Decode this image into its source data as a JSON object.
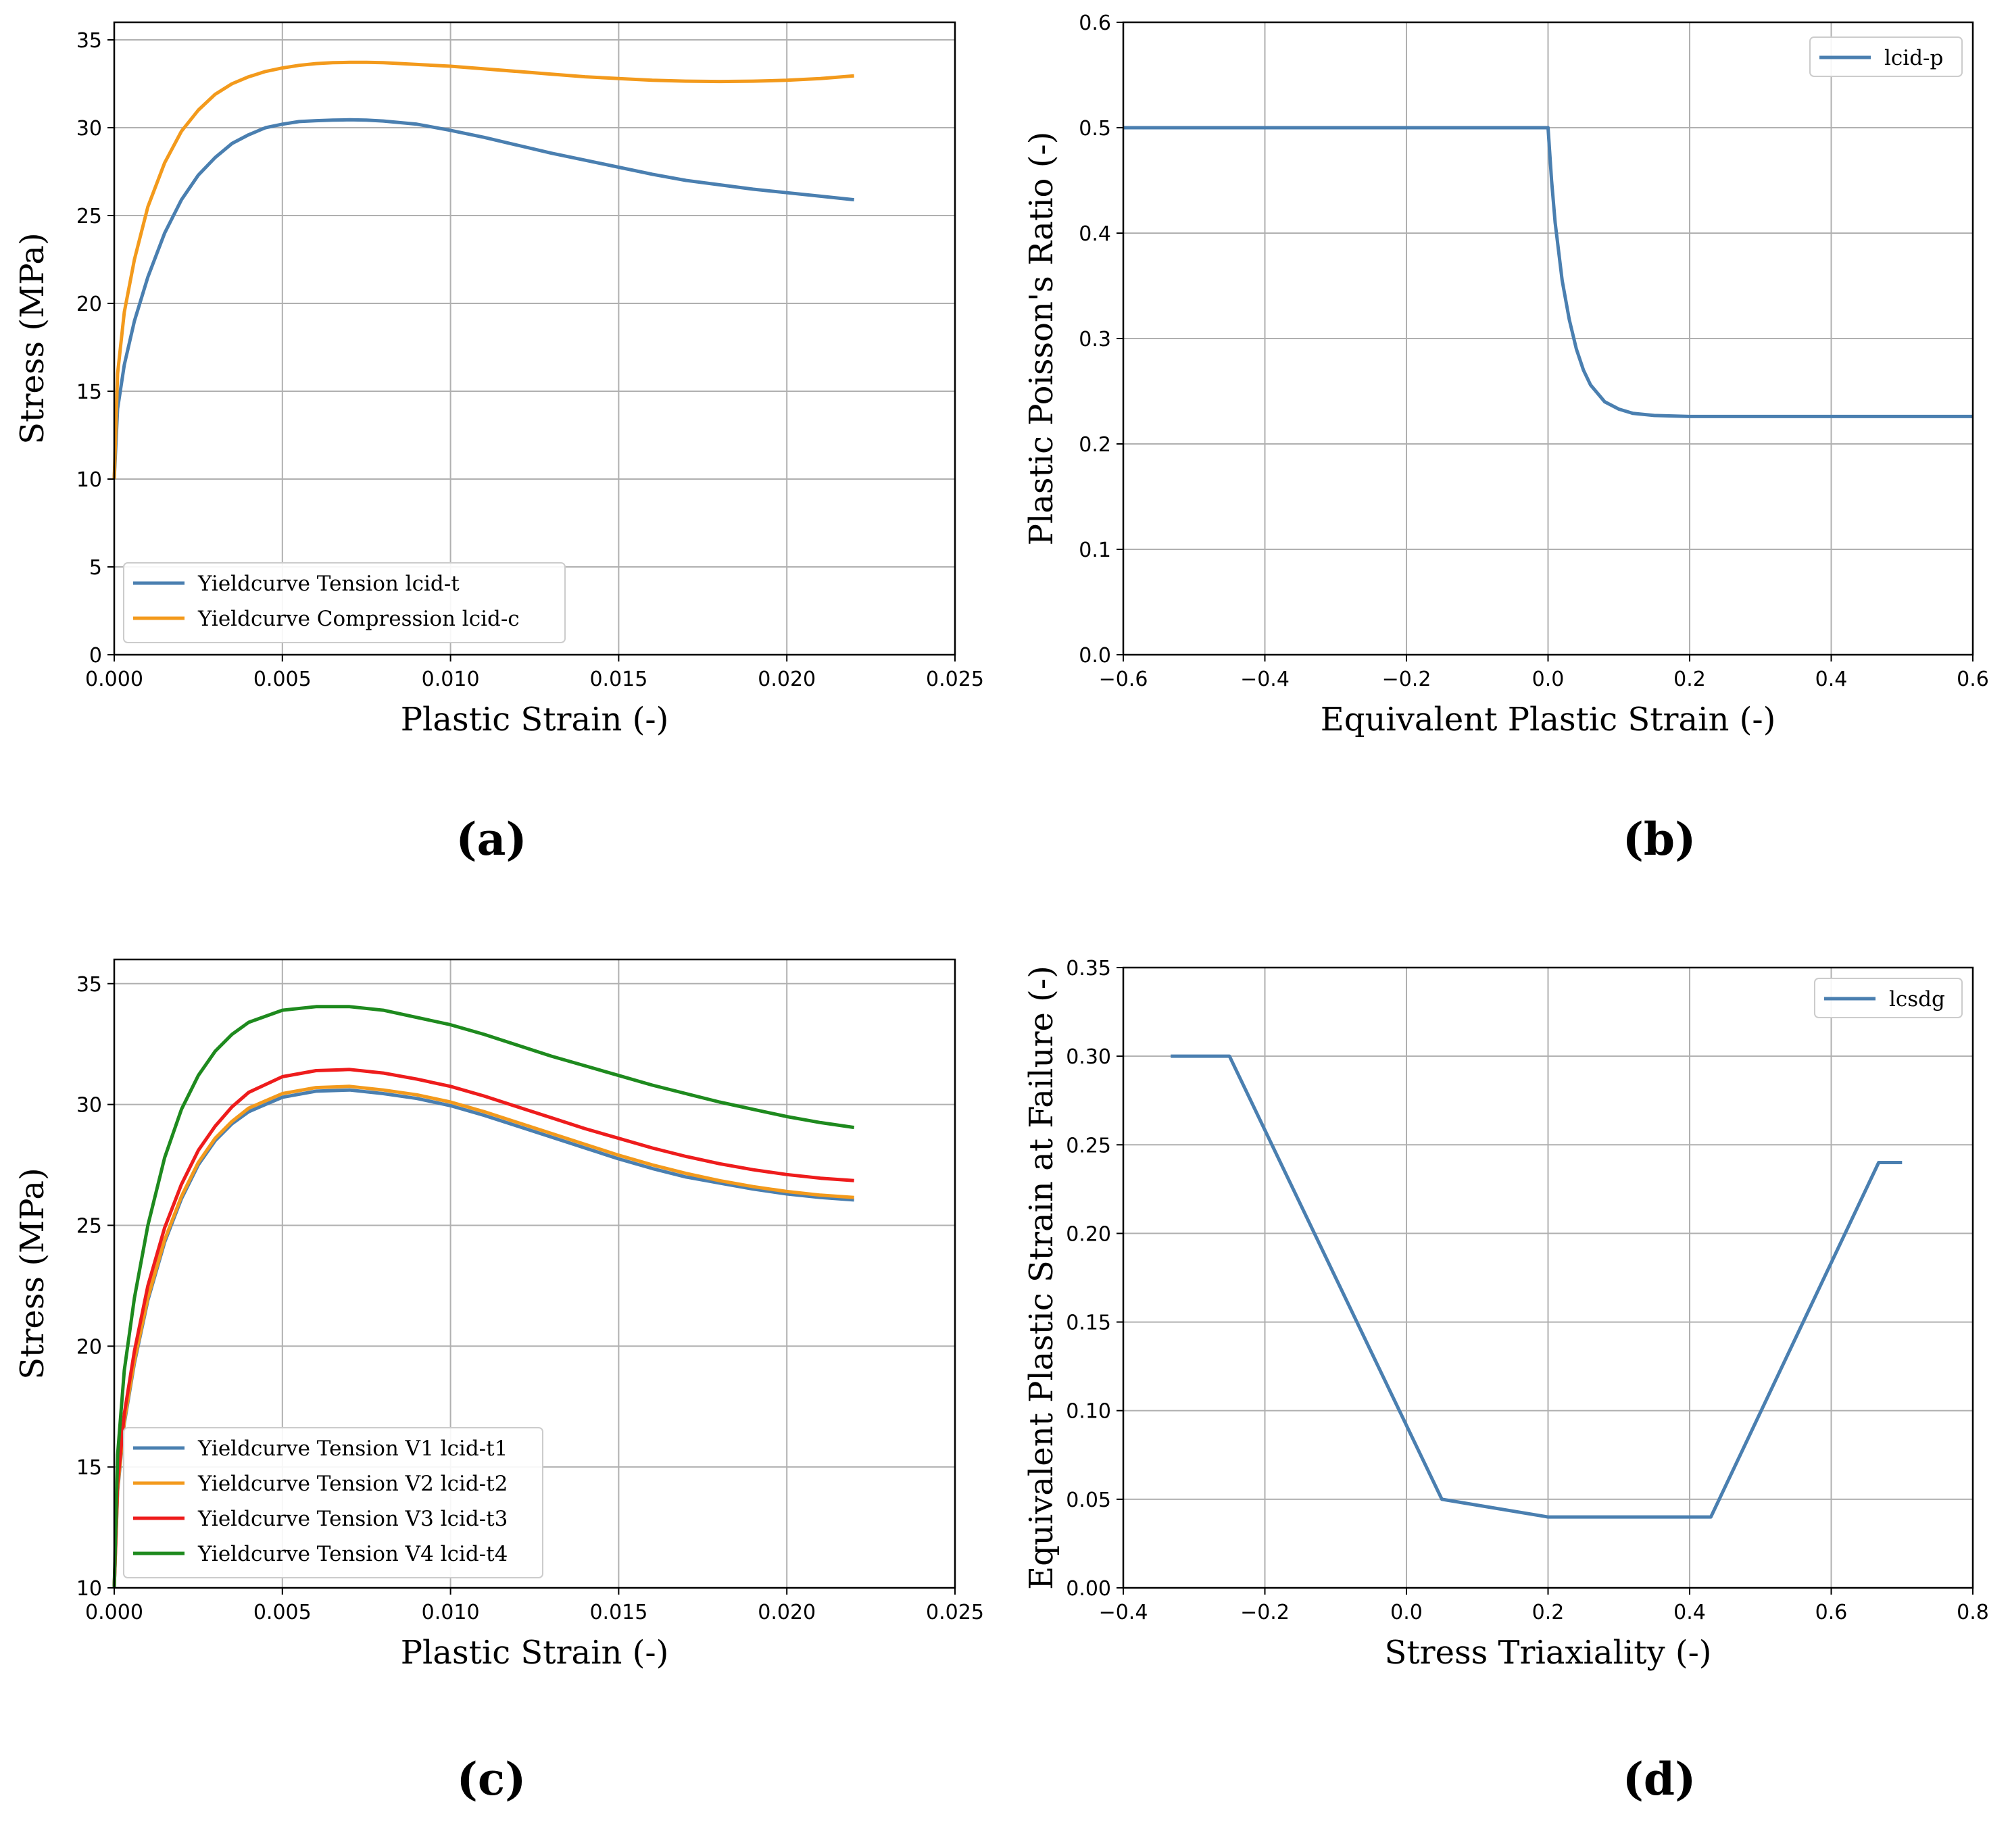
{
  "colors": {
    "blue": "#4a7fb0",
    "orange": "#f39a1c",
    "red": "#ee1c1c",
    "green": "#1e8a1e",
    "grid": "#b0b0b0",
    "axis": "#000000"
  },
  "chart_data": [
    {
      "id": "a",
      "type": "line",
      "caption": "(a)",
      "xlabel": "Plastic Strain (-)",
      "ylabel": "Stress (MPa)",
      "xlim": [
        0,
        0.025
      ],
      "ylim": [
        0,
        36
      ],
      "xticks": [
        0,
        0.005,
        0.01,
        0.015,
        0.02,
        0.025
      ],
      "xtick_labels": [
        "0.000",
        "0.005",
        "0.010",
        "0.015",
        "0.020",
        "0.025"
      ],
      "yticks": [
        0,
        5,
        10,
        15,
        20,
        25,
        30,
        35
      ],
      "ytick_labels": [
        "0",
        "5",
        "10",
        "15",
        "20",
        "25",
        "30",
        "35"
      ],
      "grid": true,
      "legend_position": "bottom-left",
      "series": [
        {
          "name": "Yieldcurve Tension lcid-t",
          "color": "blue",
          "x": [
            0,
            0.0001,
            0.0003,
            0.0006,
            0.001,
            0.0015,
            0.002,
            0.0025,
            0.003,
            0.0035,
            0.004,
            0.0045,
            0.005,
            0.0055,
            0.006,
            0.0065,
            0.007,
            0.0075,
            0.008,
            0.009,
            0.01,
            0.011,
            0.012,
            0.013,
            0.014,
            0.015,
            0.016,
            0.017,
            0.018,
            0.019,
            0.02,
            0.021,
            0.022
          ],
          "y": [
            10,
            14,
            16.5,
            19,
            21.5,
            24,
            25.9,
            27.3,
            28.3,
            29.1,
            29.6,
            30.0,
            30.2,
            30.35,
            30.4,
            30.43,
            30.45,
            30.43,
            30.38,
            30.2,
            29.85,
            29.45,
            29.0,
            28.55,
            28.15,
            27.75,
            27.35,
            27.0,
            26.75,
            26.5,
            26.3,
            26.1,
            25.9
          ]
        },
        {
          "name": "Yieldcurve Compression lcid-c",
          "color": "orange",
          "x": [
            0,
            0.0001,
            0.0003,
            0.0006,
            0.001,
            0.0015,
            0.002,
            0.0025,
            0.003,
            0.0035,
            0.004,
            0.0045,
            0.005,
            0.0055,
            0.006,
            0.0065,
            0.007,
            0.0075,
            0.008,
            0.009,
            0.01,
            0.011,
            0.012,
            0.013,
            0.014,
            0.015,
            0.016,
            0.017,
            0.018,
            0.019,
            0.02,
            0.021,
            0.022
          ],
          "y": [
            10,
            16,
            19.5,
            22.5,
            25.5,
            28.0,
            29.8,
            31.0,
            31.9,
            32.5,
            32.9,
            33.2,
            33.4,
            33.55,
            33.65,
            33.7,
            33.72,
            33.72,
            33.7,
            33.6,
            33.5,
            33.35,
            33.2,
            33.05,
            32.9,
            32.8,
            32.7,
            32.65,
            32.63,
            32.65,
            32.7,
            32.8,
            32.95
          ]
        }
      ]
    },
    {
      "id": "b",
      "type": "line",
      "caption": "(b)",
      "xlabel": "Equivalent Plastic Strain (-)",
      "ylabel": "Plastic Poisson's Ratio (-)",
      "xlim": [
        -0.6,
        0.6
      ],
      "ylim": [
        0,
        0.6
      ],
      "xticks": [
        -0.6,
        -0.4,
        -0.2,
        0,
        0.2,
        0.4,
        0.6
      ],
      "xtick_labels": [
        "−0.6",
        "−0.4",
        "−0.2",
        "0.0",
        "0.2",
        "0.4",
        "0.6"
      ],
      "yticks": [
        0,
        0.1,
        0.2,
        0.3,
        0.4,
        0.5,
        0.6
      ],
      "ytick_labels": [
        "0.0",
        "0.1",
        "0.2",
        "0.3",
        "0.4",
        "0.5",
        "0.6"
      ],
      "grid": true,
      "legend_position": "top-right",
      "series": [
        {
          "name": "lcid-p",
          "color": "blue",
          "x": [
            -0.6,
            0,
            0.005,
            0.01,
            0.02,
            0.03,
            0.04,
            0.05,
            0.06,
            0.08,
            0.1,
            0.12,
            0.15,
            0.2,
            0.3,
            0.6
          ],
          "y": [
            0.5,
            0.5,
            0.45,
            0.41,
            0.355,
            0.318,
            0.29,
            0.27,
            0.256,
            0.24,
            0.233,
            0.229,
            0.227,
            0.226,
            0.226,
            0.226
          ]
        }
      ]
    },
    {
      "id": "c",
      "type": "line",
      "caption": "(c)",
      "xlabel": "Plastic Strain (-)",
      "ylabel": "Stress (MPa)",
      "xlim": [
        0,
        0.025
      ],
      "ylim": [
        10,
        36
      ],
      "xticks": [
        0,
        0.005,
        0.01,
        0.015,
        0.02,
        0.025
      ],
      "xtick_labels": [
        "0.000",
        "0.005",
        "0.010",
        "0.015",
        "0.020",
        "0.025"
      ],
      "yticks": [
        10,
        15,
        20,
        25,
        30,
        35
      ],
      "ytick_labels": [
        "10",
        "15",
        "20",
        "25",
        "30",
        "35"
      ],
      "grid": true,
      "legend_position": "bottom-left",
      "series": [
        {
          "name": "Yieldcurve Tension V1 lcid-t1",
          "color": "blue",
          "x": [
            0,
            0.0001,
            0.0003,
            0.0006,
            0.001,
            0.0015,
            0.002,
            0.0025,
            0.003,
            0.0035,
            0.004,
            0.005,
            0.006,
            0.007,
            0.008,
            0.009,
            0.01,
            0.011,
            0.012,
            0.013,
            0.014,
            0.015,
            0.016,
            0.017,
            0.018,
            0.019,
            0.02,
            0.021,
            0.022
          ],
          "y": [
            10,
            14,
            16.8,
            19.3,
            21.9,
            24.3,
            26.1,
            27.5,
            28.5,
            29.2,
            29.7,
            30.3,
            30.55,
            30.6,
            30.45,
            30.25,
            29.95,
            29.55,
            29.1,
            28.65,
            28.2,
            27.75,
            27.35,
            27.0,
            26.75,
            26.5,
            26.3,
            26.15,
            26.05
          ]
        },
        {
          "name": "Yieldcurve Tension V2 lcid-t2",
          "color": "orange",
          "x": [
            0,
            0.0001,
            0.0003,
            0.0006,
            0.001,
            0.0015,
            0.002,
            0.0025,
            0.003,
            0.0035,
            0.004,
            0.005,
            0.006,
            0.007,
            0.008,
            0.009,
            0.01,
            0.011,
            0.012,
            0.013,
            0.014,
            0.015,
            0.016,
            0.017,
            0.018,
            0.019,
            0.02,
            0.021,
            0.022
          ],
          "y": [
            10,
            14.1,
            16.9,
            19.4,
            22.0,
            24.4,
            26.2,
            27.6,
            28.6,
            29.3,
            29.85,
            30.45,
            30.7,
            30.75,
            30.6,
            30.4,
            30.1,
            29.7,
            29.25,
            28.8,
            28.35,
            27.9,
            27.5,
            27.15,
            26.85,
            26.6,
            26.4,
            26.25,
            26.15
          ]
        },
        {
          "name": "Yieldcurve Tension V3 lcid-t3",
          "color": "red",
          "x": [
            0,
            0.0001,
            0.0003,
            0.0006,
            0.001,
            0.0015,
            0.002,
            0.0025,
            0.003,
            0.0035,
            0.004,
            0.005,
            0.006,
            0.007,
            0.008,
            0.009,
            0.01,
            0.011,
            0.012,
            0.013,
            0.014,
            0.015,
            0.016,
            0.017,
            0.018,
            0.019,
            0.02,
            0.021,
            0.022
          ],
          "y": [
            10,
            14.3,
            17.2,
            19.8,
            22.5,
            24.9,
            26.7,
            28.1,
            29.1,
            29.9,
            30.5,
            31.15,
            31.4,
            31.45,
            31.3,
            31.05,
            30.75,
            30.35,
            29.9,
            29.45,
            29.0,
            28.6,
            28.2,
            27.85,
            27.55,
            27.3,
            27.1,
            26.95,
            26.85
          ]
        },
        {
          "name": "Yieldcurve Tension V4 lcid-t4",
          "color": "green",
          "x": [
            0,
            0.0001,
            0.0003,
            0.0006,
            0.001,
            0.0015,
            0.002,
            0.0025,
            0.003,
            0.0035,
            0.004,
            0.005,
            0.006,
            0.007,
            0.008,
            0.009,
            0.01,
            0.011,
            0.012,
            0.013,
            0.014,
            0.015,
            0.016,
            0.017,
            0.018,
            0.019,
            0.02,
            0.021,
            0.022
          ],
          "y": [
            10,
            15.5,
            19.0,
            22.0,
            25.0,
            27.8,
            29.8,
            31.2,
            32.2,
            32.9,
            33.4,
            33.9,
            34.05,
            34.05,
            33.9,
            33.6,
            33.3,
            32.9,
            32.45,
            32.0,
            31.6,
            31.2,
            30.8,
            30.45,
            30.1,
            29.8,
            29.5,
            29.25,
            29.05
          ]
        }
      ]
    },
    {
      "id": "d",
      "type": "line",
      "caption": "(d)",
      "xlabel": "Stress Triaxiality (-)",
      "ylabel": "Equivalent Plastic Strain at Failure (-)",
      "xlim": [
        -0.4,
        0.8
      ],
      "ylim": [
        0,
        0.35
      ],
      "xticks": [
        -0.4,
        -0.2,
        0,
        0.2,
        0.4,
        0.6,
        0.8
      ],
      "xtick_labels": [
        "−0.4",
        "−0.2",
        "0.0",
        "0.2",
        "0.4",
        "0.6",
        "0.8"
      ],
      "yticks": [
        0,
        0.05,
        0.1,
        0.15,
        0.2,
        0.25,
        0.3,
        0.35
      ],
      "ytick_labels": [
        "0.00",
        "0.05",
        "0.10",
        "0.15",
        "0.20",
        "0.25",
        "0.30",
        "0.35"
      ],
      "grid": true,
      "legend_position": "top-right",
      "series": [
        {
          "name": "lcsdg",
          "color": "blue",
          "x": [
            -0.333,
            -0.25,
            0.05,
            0.2,
            0.43,
            0.667,
            0.7
          ],
          "y": [
            0.3,
            0.3,
            0.05,
            0.04,
            0.04,
            0.24,
            0.24
          ]
        }
      ]
    }
  ]
}
